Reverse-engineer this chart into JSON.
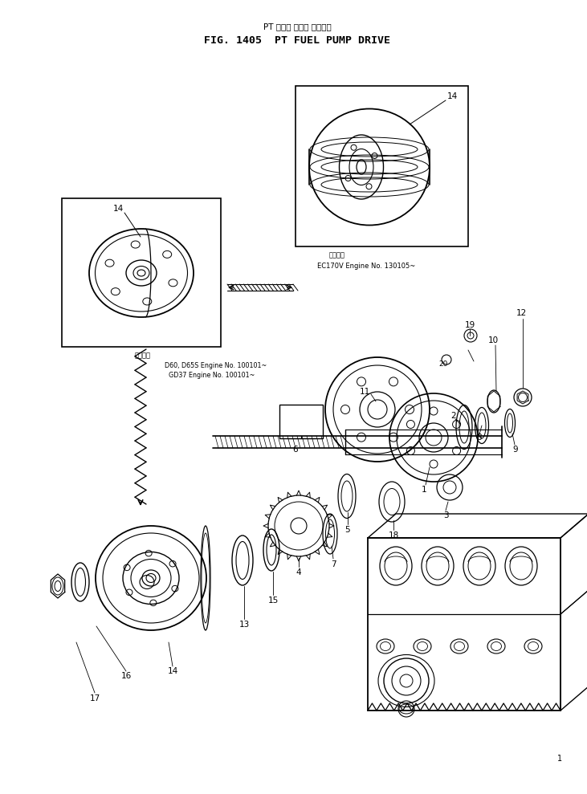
{
  "title_japanese": "PT フェル ポンプ ドライブ",
  "title_english": "FIG. 1405  PT FUEL PUMP DRIVE",
  "background_color": "#ffffff",
  "line_color": "#000000",
  "fig_width": 7.31,
  "fig_height": 9.89,
  "dpi": 100,
  "note_top_jp": "適用番号",
  "note_top_en": "EC170V Engine No. 130105~",
  "note_left_jp": "適用番号",
  "note_left_en1": "D60, D65S Engine No. 100101~",
  "note_left_en2": "GD37 Engine No. 100101~"
}
